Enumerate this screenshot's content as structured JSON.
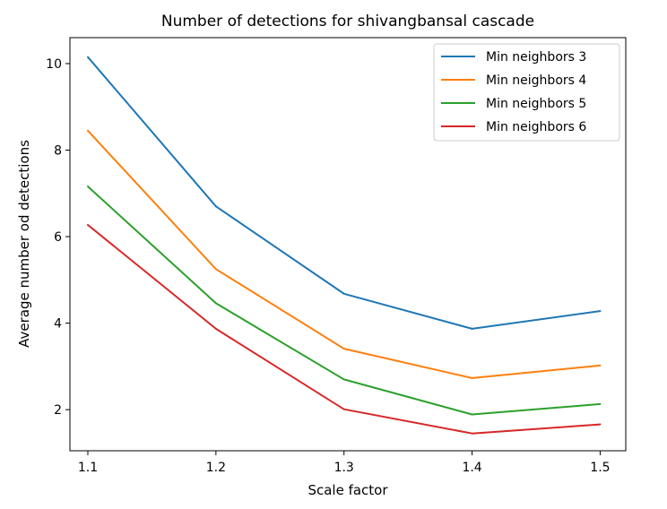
{
  "chart_data": {
    "type": "line",
    "title": "Number of detections for shivangbansal cascade",
    "xlabel": "Scale factor",
    "ylabel": "Average number od detections",
    "x": [
      1.1,
      1.2,
      1.3,
      1.4,
      1.5
    ],
    "x_tick_labels": [
      "1.1",
      "1.2",
      "1.3",
      "1.4",
      "1.5"
    ],
    "xlim": [
      1.086,
      1.52
    ],
    "ylim": [
      1.05,
      10.6
    ],
    "y_ticks": [
      2,
      4,
      6,
      8,
      10
    ],
    "y_tick_labels": [
      "2",
      "4",
      "6",
      "8",
      "10"
    ],
    "grid": false,
    "legend_position": "top-right",
    "series": [
      {
        "name": "Min neighbors 3",
        "color": "#1f77b4",
        "values": [
          10.15,
          6.7,
          4.68,
          3.87,
          4.28
        ]
      },
      {
        "name": "Min neighbors 4",
        "color": "#ff7f0e",
        "values": [
          8.45,
          5.25,
          3.41,
          2.73,
          3.02
        ]
      },
      {
        "name": "Min neighbors 5",
        "color": "#2ca02c",
        "values": [
          7.16,
          4.46,
          2.7,
          1.89,
          2.13
        ]
      },
      {
        "name": "Min neighbors 6",
        "color": "#d62728",
        "values": [
          6.27,
          3.87,
          2.01,
          1.45,
          1.66
        ]
      }
    ]
  }
}
